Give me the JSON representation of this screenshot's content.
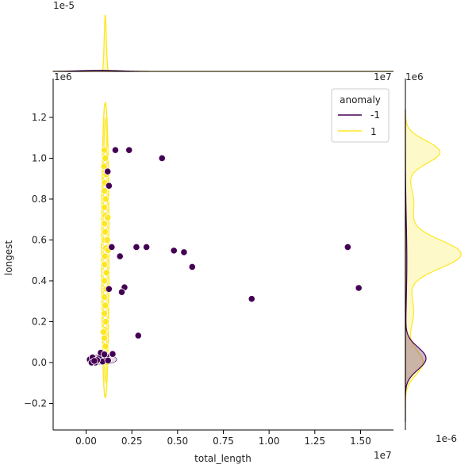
{
  "chart_data": {
    "type": "scatter",
    "kind": "joint plot with marginal KDE",
    "xlabel": "total_length",
    "ylabel": "longest",
    "x_offset_text": "1e7",
    "y_offset_text": "1e6",
    "top_marginal_offset_text": "1e-5",
    "right_marginal_offset_text": "1e-6",
    "xlim": [
      -1800000,
      16800000
    ],
    "ylim": [
      -330000,
      1390000
    ],
    "x_ticks": [
      0,
      2500000,
      5000000,
      7500000,
      10000000,
      12500000,
      15000000
    ],
    "x_tick_labels": [
      "0.00",
      "0.25",
      "0.50",
      "0.75",
      "1.00",
      "1.25",
      "1.50"
    ],
    "y_ticks": [
      -200000,
      0,
      200000,
      400000,
      600000,
      800000,
      1000000,
      1200000
    ],
    "y_tick_labels": [
      "−0.2",
      "0.0",
      "0.2",
      "0.4",
      "0.6",
      "0.8",
      "1.0",
      "1.2"
    ],
    "grid": false,
    "legend": {
      "title": "anomaly",
      "placement": "upper right",
      "entries": [
        {
          "label": "-1",
          "color": "#440154"
        },
        {
          "label": "1",
          "color": "#fde725"
        }
      ]
    },
    "series": [
      {
        "name": "-1",
        "color": "#440154",
        "points": [
          [
            1600000,
            1040000
          ],
          [
            2350000,
            1040000
          ],
          [
            4150000,
            1000000
          ],
          [
            1180000,
            935000
          ],
          [
            1250000,
            865000
          ],
          [
            2750000,
            565000
          ],
          [
            3300000,
            565000
          ],
          [
            4800000,
            548000
          ],
          [
            5350000,
            540000
          ],
          [
            1850000,
            520000
          ],
          [
            1400000,
            565000
          ],
          [
            5800000,
            468000
          ],
          [
            14300000,
            565000
          ],
          [
            2100000,
            368000
          ],
          [
            1950000,
            345000
          ],
          [
            1250000,
            360000
          ],
          [
            9050000,
            312000
          ],
          [
            14900000,
            365000
          ],
          [
            2850000,
            132000
          ],
          [
            1450000,
            42000
          ],
          [
            200000,
            15000
          ],
          [
            350000,
            25000
          ],
          [
            500000,
            0
          ],
          [
            700000,
            20000
          ],
          [
            900000,
            5000
          ],
          [
            600000,
            12000
          ],
          [
            1100000,
            30000
          ],
          [
            1200000,
            10000
          ],
          [
            300000,
            0
          ],
          [
            800000,
            48000
          ],
          [
            1000000,
            40000
          ],
          [
            450000,
            8000
          ]
        ]
      },
      {
        "name": "1",
        "color": "#fde725",
        "points": [
          [
            1000000,
            1040000
          ],
          [
            1050000,
            1000000
          ],
          [
            980000,
            960000
          ],
          [
            1100000,
            920000
          ],
          [
            1020000,
            880000
          ],
          [
            1000000,
            840000
          ],
          [
            1080000,
            800000
          ],
          [
            990000,
            760000
          ],
          [
            1050000,
            720000
          ],
          [
            1180000,
            710000
          ],
          [
            1000000,
            680000
          ],
          [
            1040000,
            640000
          ],
          [
            1000000,
            600000
          ],
          [
            1080000,
            560000
          ],
          [
            1020000,
            520000
          ],
          [
            1000000,
            480000
          ],
          [
            1060000,
            440000
          ],
          [
            990000,
            400000
          ],
          [
            1100000,
            360000
          ],
          [
            1000000,
            320000
          ],
          [
            1050000,
            280000
          ],
          [
            1000000,
            240000
          ],
          [
            1080000,
            200000
          ],
          [
            1020000,
            160000
          ],
          [
            1000000,
            120000
          ],
          [
            1060000,
            80000
          ],
          [
            1000000,
            40000
          ],
          [
            1100000,
            0
          ],
          [
            1200000,
            550000
          ],
          [
            1150000,
            600000
          ],
          [
            1120000,
            440000
          ],
          [
            950000,
            150000
          ]
        ]
      }
    ],
    "marginal_top": {
      "series": [
        {
          "name": "1",
          "peak_x": 1050000,
          "peak_density": 2.1e-05
        },
        {
          "name": "-1",
          "peak_x": 1000000,
          "peak_density": 5e-07
        }
      ]
    },
    "marginal_right": {
      "series": [
        {
          "name": "1",
          "modes_y": [
            0,
            530000,
            1030000
          ],
          "peak_density": 1.7e-06
        },
        {
          "name": "-1",
          "modes_y": [
            0
          ],
          "peak_density": 1.2e-06
        }
      ]
    }
  }
}
